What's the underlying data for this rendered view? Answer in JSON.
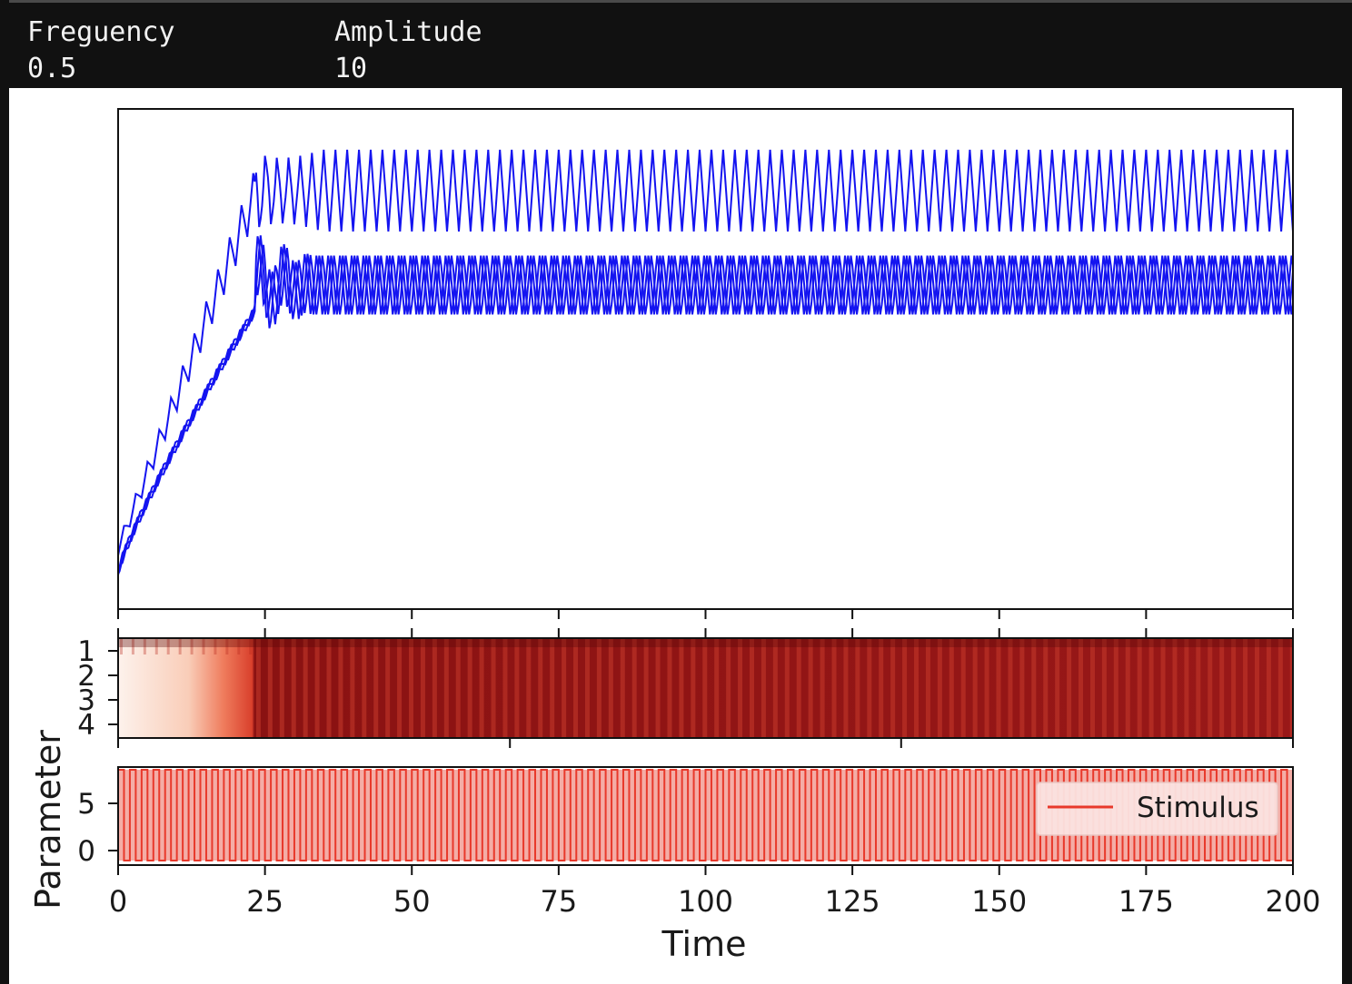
{
  "controls": {
    "frequency": {
      "label": "Freguency",
      "value": "0.5"
    },
    "amplitude": {
      "label": "Amplitude",
      "value": "10"
    }
  },
  "colors": {
    "line": "#1414f0",
    "stimulus": "#e8392b",
    "heat_dark": "#8a1010",
    "heat_light": "#fdf0e8"
  },
  "chart_data": [
    {
      "type": "line",
      "title": "",
      "xlabel": "",
      "ylabel": "",
      "xlim": [
        0,
        200
      ],
      "series": [
        {
          "values": []
        },
        {
          "values": []
        },
        {
          "values": []
        },
        {
          "values": []
        }
      ],
      "notes": ""
    },
    {
      "type": "heatmap",
      "xlim": [
        0,
        200
      ],
      "y_ticks": [
        "1",
        "2",
        "3",
        "4"
      ],
      "colormap": "Reds"
    },
    {
      "type": "line",
      "xlim": [
        0,
        200
      ],
      "y_ticks": [
        "0",
        "5"
      ],
      "series": [
        {
          "name": "Stimulus",
          "amplitude": 10,
          "frequency": 0.5
        }
      ],
      "legend": "right",
      "xlabel": "Time",
      "ylabel": "Parameter",
      "x_ticks": [
        "0",
        "25",
        "50",
        "75",
        "100",
        "125",
        "150",
        "175",
        "200"
      ]
    }
  ]
}
